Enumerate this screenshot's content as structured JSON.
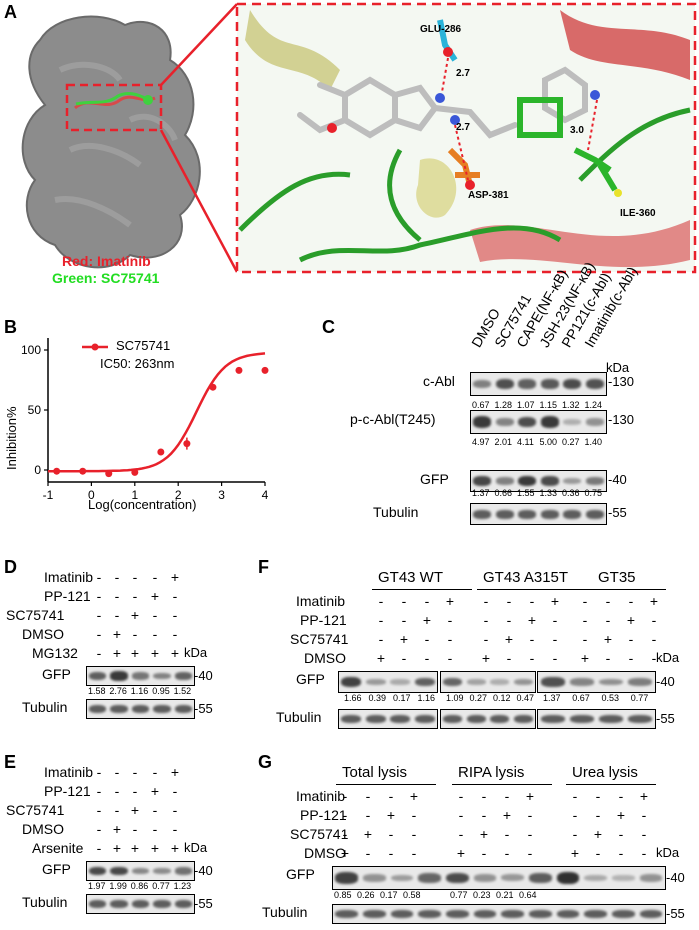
{
  "panels": {
    "a": "A",
    "b": "B",
    "c": "C",
    "d": "D",
    "e": "E",
    "f": "F",
    "g": "G"
  },
  "panel_a": {
    "legend_red": "Red: Imatinib",
    "legend_green": "Green: SC75741",
    "residues": [
      "GLU-286",
      "ASP-381",
      "ILE-360"
    ],
    "distances": [
      "2.7",
      "2.7",
      "3.0"
    ],
    "colors": {
      "red": "#e8212b",
      "green": "#22dd22",
      "dash": "#e8212b"
    }
  },
  "chart_data": {
    "type": "scatter",
    "legend": "SC75741",
    "annotation": "IC50: 263nm",
    "xlabel": "Log(concentration)",
    "ylabel": "Inhibition%",
    "xlim": [
      -1,
      4
    ],
    "ylim": [
      -10,
      110
    ],
    "xticks": [
      "-1",
      "0",
      "1",
      "2",
      "3",
      "4"
    ],
    "yticks": [
      "0",
      "50",
      "100"
    ],
    "x": [
      -0.8,
      -0.2,
      0.4,
      1.0,
      1.6,
      2.2,
      2.8,
      3.4,
      4.0
    ],
    "y": [
      -1,
      -1,
      -3,
      -2,
      15,
      22,
      69,
      83,
      83
    ],
    "color": "#e8212b"
  },
  "panel_c": {
    "lanes": [
      "DMSO",
      "SC75741",
      "CAPE(NF-κB)",
      "JSH-23(NF-κB)",
      "PP121(c-Abl)",
      "Imatinib(c-Abl)"
    ],
    "kda": "kDa",
    "rows": [
      {
        "label": "c-Abl",
        "marker": "-130",
        "values": [
          "0.67",
          "1.28",
          "1.07",
          "1.15",
          "1.32",
          "1.24"
        ]
      },
      {
        "label": "p-c-Abl(T245)",
        "marker": "-130",
        "values": [
          "4.97",
          "2.01",
          "4.11",
          "5.00",
          "0.27",
          "1.40"
        ]
      },
      {
        "label": "GFP",
        "marker": "-40",
        "values": [
          "1.37",
          "0.66",
          "1.55",
          "1.33",
          "0.36",
          "0.75"
        ]
      },
      {
        "label": "Tubulin",
        "marker": "-55",
        "values": []
      }
    ]
  },
  "panel_d": {
    "conditions": [
      "Imatinib",
      "PP-121",
      "SC75741",
      "DMSO",
      "MG132"
    ],
    "marks": [
      [
        "-",
        "-",
        "-",
        "-",
        "+"
      ],
      [
        "-",
        "-",
        "-",
        "+",
        "-"
      ],
      [
        "-",
        "-",
        "+",
        "-",
        "-"
      ],
      [
        "-",
        "+",
        "-",
        "-",
        "-"
      ],
      [
        "-",
        "+",
        "+",
        "+",
        "+"
      ]
    ],
    "kda": "kDa",
    "gfp_label": "GFP",
    "gfp_marker": "-40",
    "values": [
      "1.58",
      "2.76",
      "1.16",
      "0.95",
      "1.52"
    ],
    "tubulin_label": "Tubulin",
    "tubulin_marker": "-55"
  },
  "panel_e": {
    "conditions": [
      "Imatinib",
      "PP-121",
      "SC75741",
      "DMSO",
      "Arsenite"
    ],
    "marks": [
      [
        "-",
        "-",
        "-",
        "-",
        "+"
      ],
      [
        "-",
        "-",
        "-",
        "+",
        "-"
      ],
      [
        "-",
        "-",
        "+",
        "-",
        "-"
      ],
      [
        "-",
        "+",
        "-",
        "-",
        "-"
      ],
      [
        "-",
        "+",
        "+",
        "+",
        "+"
      ]
    ],
    "kda": "kDa",
    "gfp_label": "GFP",
    "gfp_marker": "-40",
    "values": [
      "1.97",
      "1.99",
      "0.86",
      "0.77",
      "1.23"
    ],
    "tubulin_label": "Tubulin",
    "tubulin_marker": "-55"
  },
  "panel_f": {
    "groups": [
      "GT43 WT",
      "GT43 A315T",
      "GT35"
    ],
    "conditions": [
      "Imatinib",
      "PP-121",
      "SC75741",
      "DMSO"
    ],
    "marks": [
      [
        "-",
        "-",
        "-",
        "+"
      ],
      [
        "-",
        "-",
        "+",
        "-"
      ],
      [
        "-",
        "+",
        "-",
        "-"
      ],
      [
        "+",
        "-",
        "-",
        "-"
      ]
    ],
    "kda": "kDa",
    "gfp_label": "GFP",
    "gfp_marker": "-40",
    "values": [
      [
        "1.66",
        "0.39",
        "0.17",
        "1.16"
      ],
      [
        "1.09",
        "0.27",
        "0.12",
        "0.47"
      ],
      [
        "1.37",
        "0.67",
        "0.53",
        "0.77"
      ]
    ],
    "tubulin_label": "Tubulin",
    "tubulin_marker": "-55"
  },
  "panel_g": {
    "groups": [
      "Total lysis",
      "RIPA lysis",
      "Urea lysis"
    ],
    "conditions": [
      "Imatinib",
      "PP-121",
      "SC75741",
      "DMSO"
    ],
    "marks": [
      [
        "-",
        "-",
        "-",
        "+"
      ],
      [
        "-",
        "-",
        "+",
        "-"
      ],
      [
        "-",
        "+",
        "-",
        "-"
      ],
      [
        "+",
        "-",
        "-",
        "-"
      ]
    ],
    "kda": "kDa",
    "gfp_label": "GFP",
    "gfp_marker": "-40",
    "values": [
      "0.85",
      "0.26",
      "0.17",
      "0.58",
      "0.77",
      "0.23",
      "0.21",
      "0.64"
    ],
    "tubulin_label": "Tubulin",
    "tubulin_marker": "-55"
  }
}
